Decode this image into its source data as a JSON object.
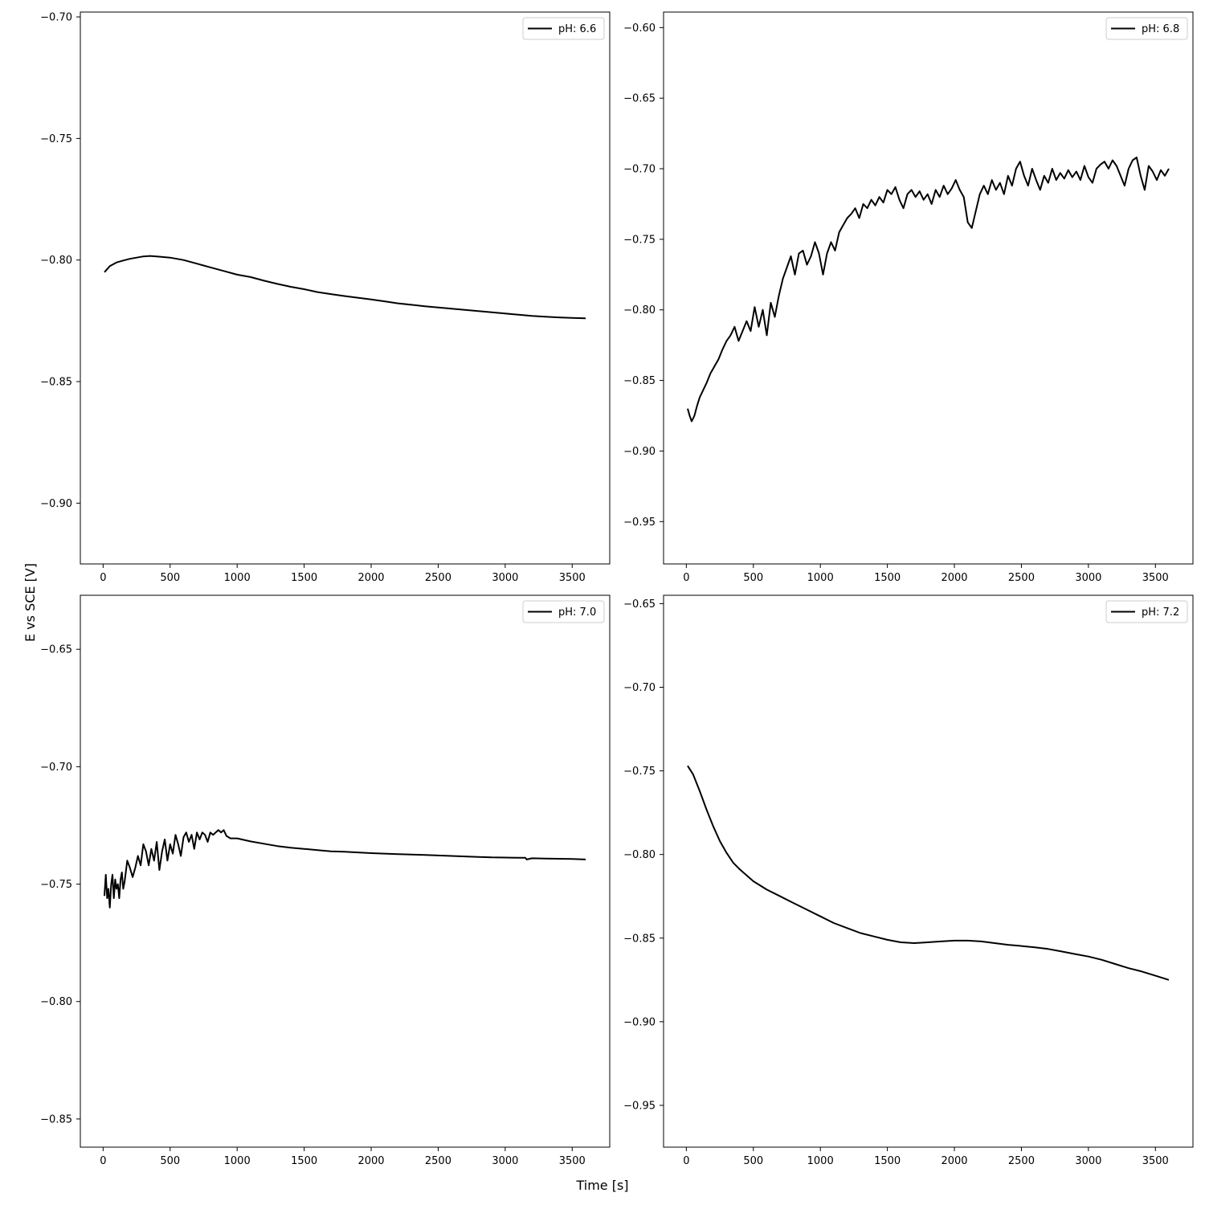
{
  "figure": {
    "xlabel": "Time [s]",
    "ylabel": "E vs SCE [V]"
  },
  "style": {
    "line_color": "#000000",
    "axis_color": "#000000",
    "legend_edge_color": "#cccccc"
  },
  "chart_data": [
    {
      "type": "line",
      "legend_position": "top-right",
      "grid": false,
      "xlim": [
        -170,
        3780
      ],
      "ylim": [
        -0.925,
        -0.698
      ],
      "xticks": [
        0,
        500,
        1000,
        1500,
        2000,
        2500,
        3000,
        3500
      ],
      "yticks": [
        -0.9,
        -0.85,
        -0.8,
        -0.75,
        -0.7
      ],
      "series": [
        {
          "name": "pH: 6.6",
          "x": [
            10,
            50,
            100,
            150,
            200,
            250,
            300,
            350,
            400,
            500,
            600,
            700,
            800,
            900,
            1000,
            1100,
            1200,
            1300,
            1400,
            1500,
            1600,
            1700,
            1800,
            1900,
            2000,
            2100,
            2200,
            2300,
            2400,
            2500,
            2600,
            2700,
            2800,
            2900,
            3000,
            3100,
            3200,
            3300,
            3400,
            3500,
            3600
          ],
          "y": [
            -0.805,
            -0.8025,
            -0.801,
            -0.8002,
            -0.7995,
            -0.799,
            -0.7985,
            -0.7983,
            -0.7985,
            -0.799,
            -0.8,
            -0.8015,
            -0.803,
            -0.8045,
            -0.806,
            -0.807,
            -0.8085,
            -0.8098,
            -0.811,
            -0.812,
            -0.8132,
            -0.814,
            -0.8148,
            -0.8155,
            -0.8162,
            -0.817,
            -0.8178,
            -0.8184,
            -0.819,
            -0.8195,
            -0.82,
            -0.8205,
            -0.821,
            -0.8215,
            -0.822,
            -0.8225,
            -0.823,
            -0.8233,
            -0.8236,
            -0.8238,
            -0.824
          ]
        }
      ]
    },
    {
      "type": "line",
      "legend_position": "top-right",
      "grid": false,
      "xlim": [
        -170,
        3780
      ],
      "ylim": [
        -0.98,
        -0.589
      ],
      "xticks": [
        0,
        500,
        1000,
        1500,
        2000,
        2500,
        3000,
        3500
      ],
      "yticks": [
        -0.95,
        -0.9,
        -0.85,
        -0.8,
        -0.75,
        -0.7,
        -0.65,
        -0.6
      ],
      "series": [
        {
          "name": "pH: 6.8",
          "x": [
            10,
            25,
            40,
            60,
            80,
            100,
            120,
            150,
            180,
            210,
            240,
            270,
            300,
            330,
            360,
            390,
            420,
            450,
            480,
            510,
            540,
            570,
            600,
            630,
            660,
            690,
            720,
            750,
            780,
            810,
            840,
            870,
            900,
            930,
            960,
            990,
            1020,
            1050,
            1080,
            1110,
            1140,
            1170,
            1200,
            1230,
            1260,
            1290,
            1320,
            1350,
            1380,
            1410,
            1440,
            1470,
            1500,
            1530,
            1560,
            1590,
            1620,
            1650,
            1680,
            1710,
            1740,
            1770,
            1800,
            1830,
            1860,
            1890,
            1920,
            1950,
            1980,
            2010,
            2040,
            2070,
            2100,
            2130,
            2160,
            2190,
            2220,
            2250,
            2280,
            2310,
            2340,
            2370,
            2400,
            2430,
            2460,
            2490,
            2520,
            2550,
            2580,
            2610,
            2640,
            2670,
            2700,
            2730,
            2760,
            2790,
            2820,
            2850,
            2880,
            2910,
            2940,
            2970,
            3000,
            3030,
            3060,
            3090,
            3120,
            3150,
            3180,
            3210,
            3240,
            3270,
            3300,
            3330,
            3360,
            3390,
            3420,
            3450,
            3480,
            3510,
            3540,
            3570,
            3600
          ],
          "y": [
            -0.87,
            -0.875,
            -0.879,
            -0.875,
            -0.868,
            -0.862,
            -0.858,
            -0.852,
            -0.845,
            -0.84,
            -0.835,
            -0.828,
            -0.822,
            -0.818,
            -0.812,
            -0.822,
            -0.815,
            -0.808,
            -0.815,
            -0.798,
            -0.812,
            -0.8,
            -0.818,
            -0.795,
            -0.805,
            -0.79,
            -0.778,
            -0.77,
            -0.762,
            -0.775,
            -0.76,
            -0.758,
            -0.768,
            -0.762,
            -0.752,
            -0.76,
            -0.775,
            -0.76,
            -0.752,
            -0.758,
            -0.745,
            -0.74,
            -0.735,
            -0.732,
            -0.728,
            -0.735,
            -0.725,
            -0.728,
            -0.722,
            -0.726,
            -0.72,
            -0.724,
            -0.715,
            -0.718,
            -0.713,
            -0.722,
            -0.728,
            -0.718,
            -0.715,
            -0.72,
            -0.716,
            -0.722,
            -0.718,
            -0.725,
            -0.715,
            -0.72,
            -0.712,
            -0.718,
            -0.714,
            -0.708,
            -0.715,
            -0.72,
            -0.738,
            -0.742,
            -0.73,
            -0.718,
            -0.712,
            -0.718,
            -0.708,
            -0.715,
            -0.71,
            -0.718,
            -0.705,
            -0.712,
            -0.7,
            -0.695,
            -0.705,
            -0.712,
            -0.7,
            -0.708,
            -0.715,
            -0.705,
            -0.71,
            -0.7,
            -0.708,
            -0.703,
            -0.707,
            -0.701,
            -0.706,
            -0.702,
            -0.708,
            -0.698,
            -0.706,
            -0.71,
            -0.7,
            -0.697,
            -0.695,
            -0.7,
            -0.694,
            -0.698,
            -0.705,
            -0.712,
            -0.7,
            -0.694,
            -0.692,
            -0.705,
            -0.715,
            -0.698,
            -0.702,
            -0.708,
            -0.701,
            -0.705,
            -0.7
          ]
        }
      ]
    },
    {
      "type": "line",
      "legend_position": "top-right",
      "grid": false,
      "xlim": [
        -170,
        3780
      ],
      "ylim": [
        -0.862,
        -0.627
      ],
      "xticks": [
        0,
        500,
        1000,
        1500,
        2000,
        2500,
        3000,
        3500
      ],
      "yticks": [
        -0.85,
        -0.8,
        -0.75,
        -0.7,
        -0.65
      ],
      "series": [
        {
          "name": "pH: 7.0",
          "x": [
            10,
            20,
            30,
            40,
            50,
            60,
            70,
            80,
            90,
            100,
            110,
            120,
            130,
            140,
            150,
            160,
            180,
            200,
            220,
            240,
            260,
            280,
            300,
            320,
            340,
            360,
            380,
            400,
            420,
            440,
            460,
            480,
            500,
            520,
            540,
            560,
            580,
            600,
            620,
            640,
            660,
            680,
            700,
            720,
            740,
            760,
            780,
            800,
            820,
            840,
            860,
            880,
            900,
            920,
            950,
            1000,
            1100,
            1200,
            1300,
            1400,
            1500,
            1600,
            1700,
            1800,
            1900,
            2000,
            2100,
            2200,
            2300,
            2400,
            2500,
            2600,
            2700,
            2800,
            2900,
            3000,
            3100,
            3150,
            3160,
            3200,
            3300,
            3400,
            3500,
            3600
          ],
          "y": [
            -0.755,
            -0.746,
            -0.756,
            -0.752,
            -0.76,
            -0.75,
            -0.746,
            -0.756,
            -0.748,
            -0.752,
            -0.75,
            -0.756,
            -0.748,
            -0.745,
            -0.752,
            -0.749,
            -0.74,
            -0.743,
            -0.747,
            -0.743,
            -0.738,
            -0.742,
            -0.733,
            -0.736,
            -0.742,
            -0.735,
            -0.74,
            -0.732,
            -0.744,
            -0.736,
            -0.731,
            -0.74,
            -0.733,
            -0.737,
            -0.729,
            -0.733,
            -0.738,
            -0.73,
            -0.728,
            -0.732,
            -0.729,
            -0.735,
            -0.728,
            -0.731,
            -0.728,
            -0.729,
            -0.732,
            -0.728,
            -0.729,
            -0.728,
            -0.727,
            -0.728,
            -0.727,
            -0.7295,
            -0.7305,
            -0.7305,
            -0.7318,
            -0.7328,
            -0.7338,
            -0.7345,
            -0.735,
            -0.7355,
            -0.736,
            -0.7362,
            -0.7365,
            -0.7368,
            -0.737,
            -0.7372,
            -0.7374,
            -0.7376,
            -0.7378,
            -0.738,
            -0.7382,
            -0.7384,
            -0.7386,
            -0.7387,
            -0.7388,
            -0.7388,
            -0.7395,
            -0.739,
            -0.7391,
            -0.7392,
            -0.7393,
            -0.7395
          ]
        }
      ]
    },
    {
      "type": "line",
      "legend_position": "top-right",
      "grid": false,
      "xlim": [
        -170,
        3780
      ],
      "ylim": [
        -0.975,
        -0.645
      ],
      "xticks": [
        0,
        500,
        1000,
        1500,
        2000,
        2500,
        3000,
        3500
      ],
      "yticks": [
        -0.95,
        -0.9,
        -0.85,
        -0.8,
        -0.75,
        -0.7,
        -0.65
      ],
      "series": [
        {
          "name": "pH: 7.2",
          "x": [
            10,
            50,
            100,
            150,
            200,
            250,
            300,
            350,
            400,
            500,
            600,
            700,
            800,
            900,
            1000,
            1100,
            1200,
            1300,
            1400,
            1500,
            1600,
            1700,
            1800,
            1900,
            2000,
            2100,
            2200,
            2300,
            2400,
            2500,
            2600,
            2700,
            2800,
            2900,
            3000,
            3100,
            3200,
            3300,
            3400,
            3500,
            3600
          ],
          "y": [
            -0.747,
            -0.752,
            -0.762,
            -0.773,
            -0.783,
            -0.792,
            -0.799,
            -0.805,
            -0.809,
            -0.816,
            -0.821,
            -0.825,
            -0.829,
            -0.833,
            -0.837,
            -0.841,
            -0.844,
            -0.847,
            -0.849,
            -0.851,
            -0.8525,
            -0.853,
            -0.8525,
            -0.852,
            -0.8515,
            -0.8515,
            -0.852,
            -0.853,
            -0.854,
            -0.8547,
            -0.8555,
            -0.8565,
            -0.858,
            -0.8595,
            -0.861,
            -0.863,
            -0.8655,
            -0.868,
            -0.87,
            -0.8725,
            -0.875
          ]
        }
      ]
    }
  ]
}
